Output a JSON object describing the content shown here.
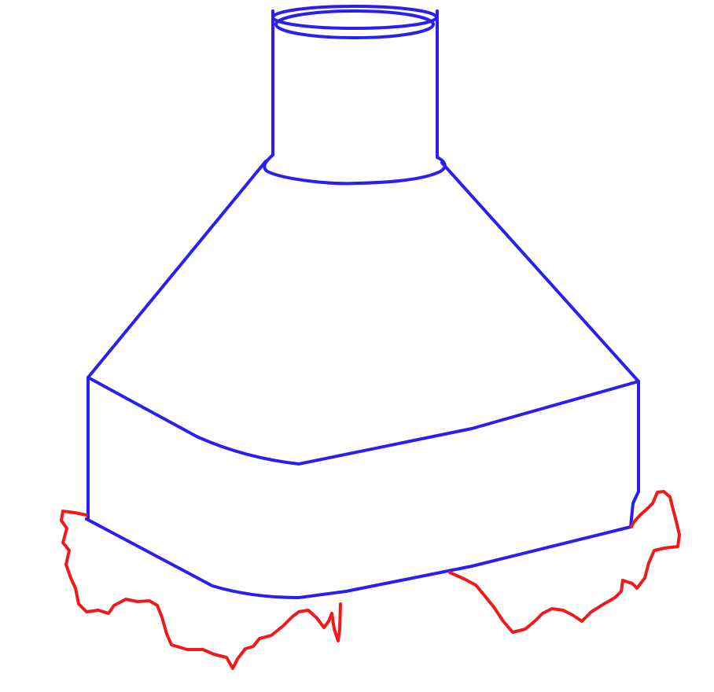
{
  "diagram": {
    "colors": {
      "outline": "#2a1ef0",
      "edge": "#f01a1a",
      "background": "#ffffff"
    },
    "parts": [
      "neck",
      "shoulder",
      "body",
      "base",
      "jagged-edge"
    ]
  }
}
